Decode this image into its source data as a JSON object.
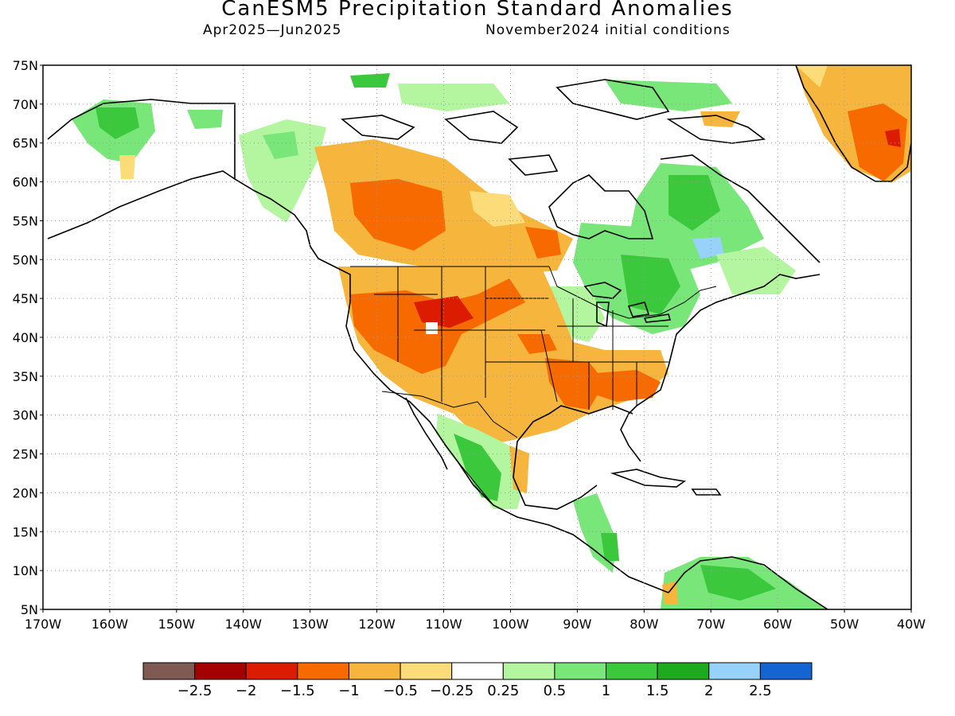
{
  "title": "CanESM5 Precipitation Standard Anomalies",
  "period": "Apr2025—Jun2025",
  "initial_conditions": "November2024 initial conditions",
  "map": {
    "lat_ticks": [
      "75N",
      "70N",
      "65N",
      "60N",
      "55N",
      "50N",
      "45N",
      "40N",
      "35N",
      "30N",
      "25N",
      "20N",
      "15N",
      "10N",
      "5N"
    ],
    "lon_ticks": [
      "170W",
      "160W",
      "150W",
      "140W",
      "130W",
      "120W",
      "110W",
      "100W",
      "90W",
      "80W",
      "70W",
      "60W",
      "50W",
      "40W"
    ],
    "grid": true,
    "lon_range": [
      -170,
      -40
    ],
    "lat_range": [
      5,
      75
    ]
  },
  "colorbar": {
    "colors": [
      "#7f5a52",
      "#a50000",
      "#dc1c00",
      "#f66a00",
      "#f6b53c",
      "#fbdc78",
      "#ffffff",
      "#b4f5a0",
      "#78e678",
      "#3cc83c",
      "#1eaa1e",
      "#96d2fa",
      "#1464d2"
    ],
    "labels": [
      "−2.5",
      "−2",
      "−1.5",
      "−1",
      "−0.5",
      "−0.25",
      "0.25",
      "0.5",
      "1",
      "1.5",
      "2",
      "2.5"
    ]
  }
}
